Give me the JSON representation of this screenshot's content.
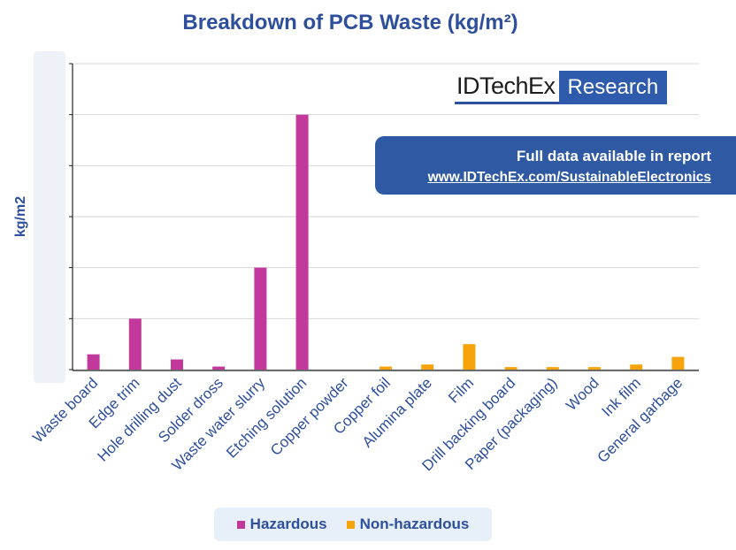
{
  "chart_data": {
    "type": "bar",
    "title": "Breakdown of PCB Waste (kg/m²)",
    "ylabel": "kg/m2",
    "xlabel": "",
    "ylim": [
      0,
      6
    ],
    "y_tick_count": 7,
    "y_tick_labels_visible": false,
    "grid": true,
    "legend_position": "bottom",
    "categories": [
      "Waste board",
      "Edge trim",
      "Hole drilling dust",
      "Solder dross",
      "Waste water slurry",
      "Etching solution",
      "Copper powder",
      "Copper foil",
      "Alumina plate",
      "Film",
      "Drill backing board",
      "Paper (packaging)",
      "Wood",
      "Ink film",
      "General garbage"
    ],
    "series": [
      {
        "name": "Hazardous",
        "color": "#c2399b",
        "values": [
          0.3,
          1.0,
          0.2,
          0.06,
          2.0,
          5.0,
          0,
          null,
          null,
          null,
          null,
          null,
          null,
          null,
          null
        ]
      },
      {
        "name": "Non-hazardous",
        "color": "#f7a30c",
        "values": [
          null,
          null,
          null,
          null,
          null,
          null,
          null,
          0.06,
          0.1,
          0.5,
          0.05,
          0.05,
          0.05,
          0.1,
          0.25
        ]
      }
    ]
  },
  "branding": {
    "logo_brand": "IDTechEx",
    "logo_product": "Research"
  },
  "banner": {
    "line1": "Full data available in report",
    "link": "www.IDTechEx.com/SustainableElectronics"
  }
}
